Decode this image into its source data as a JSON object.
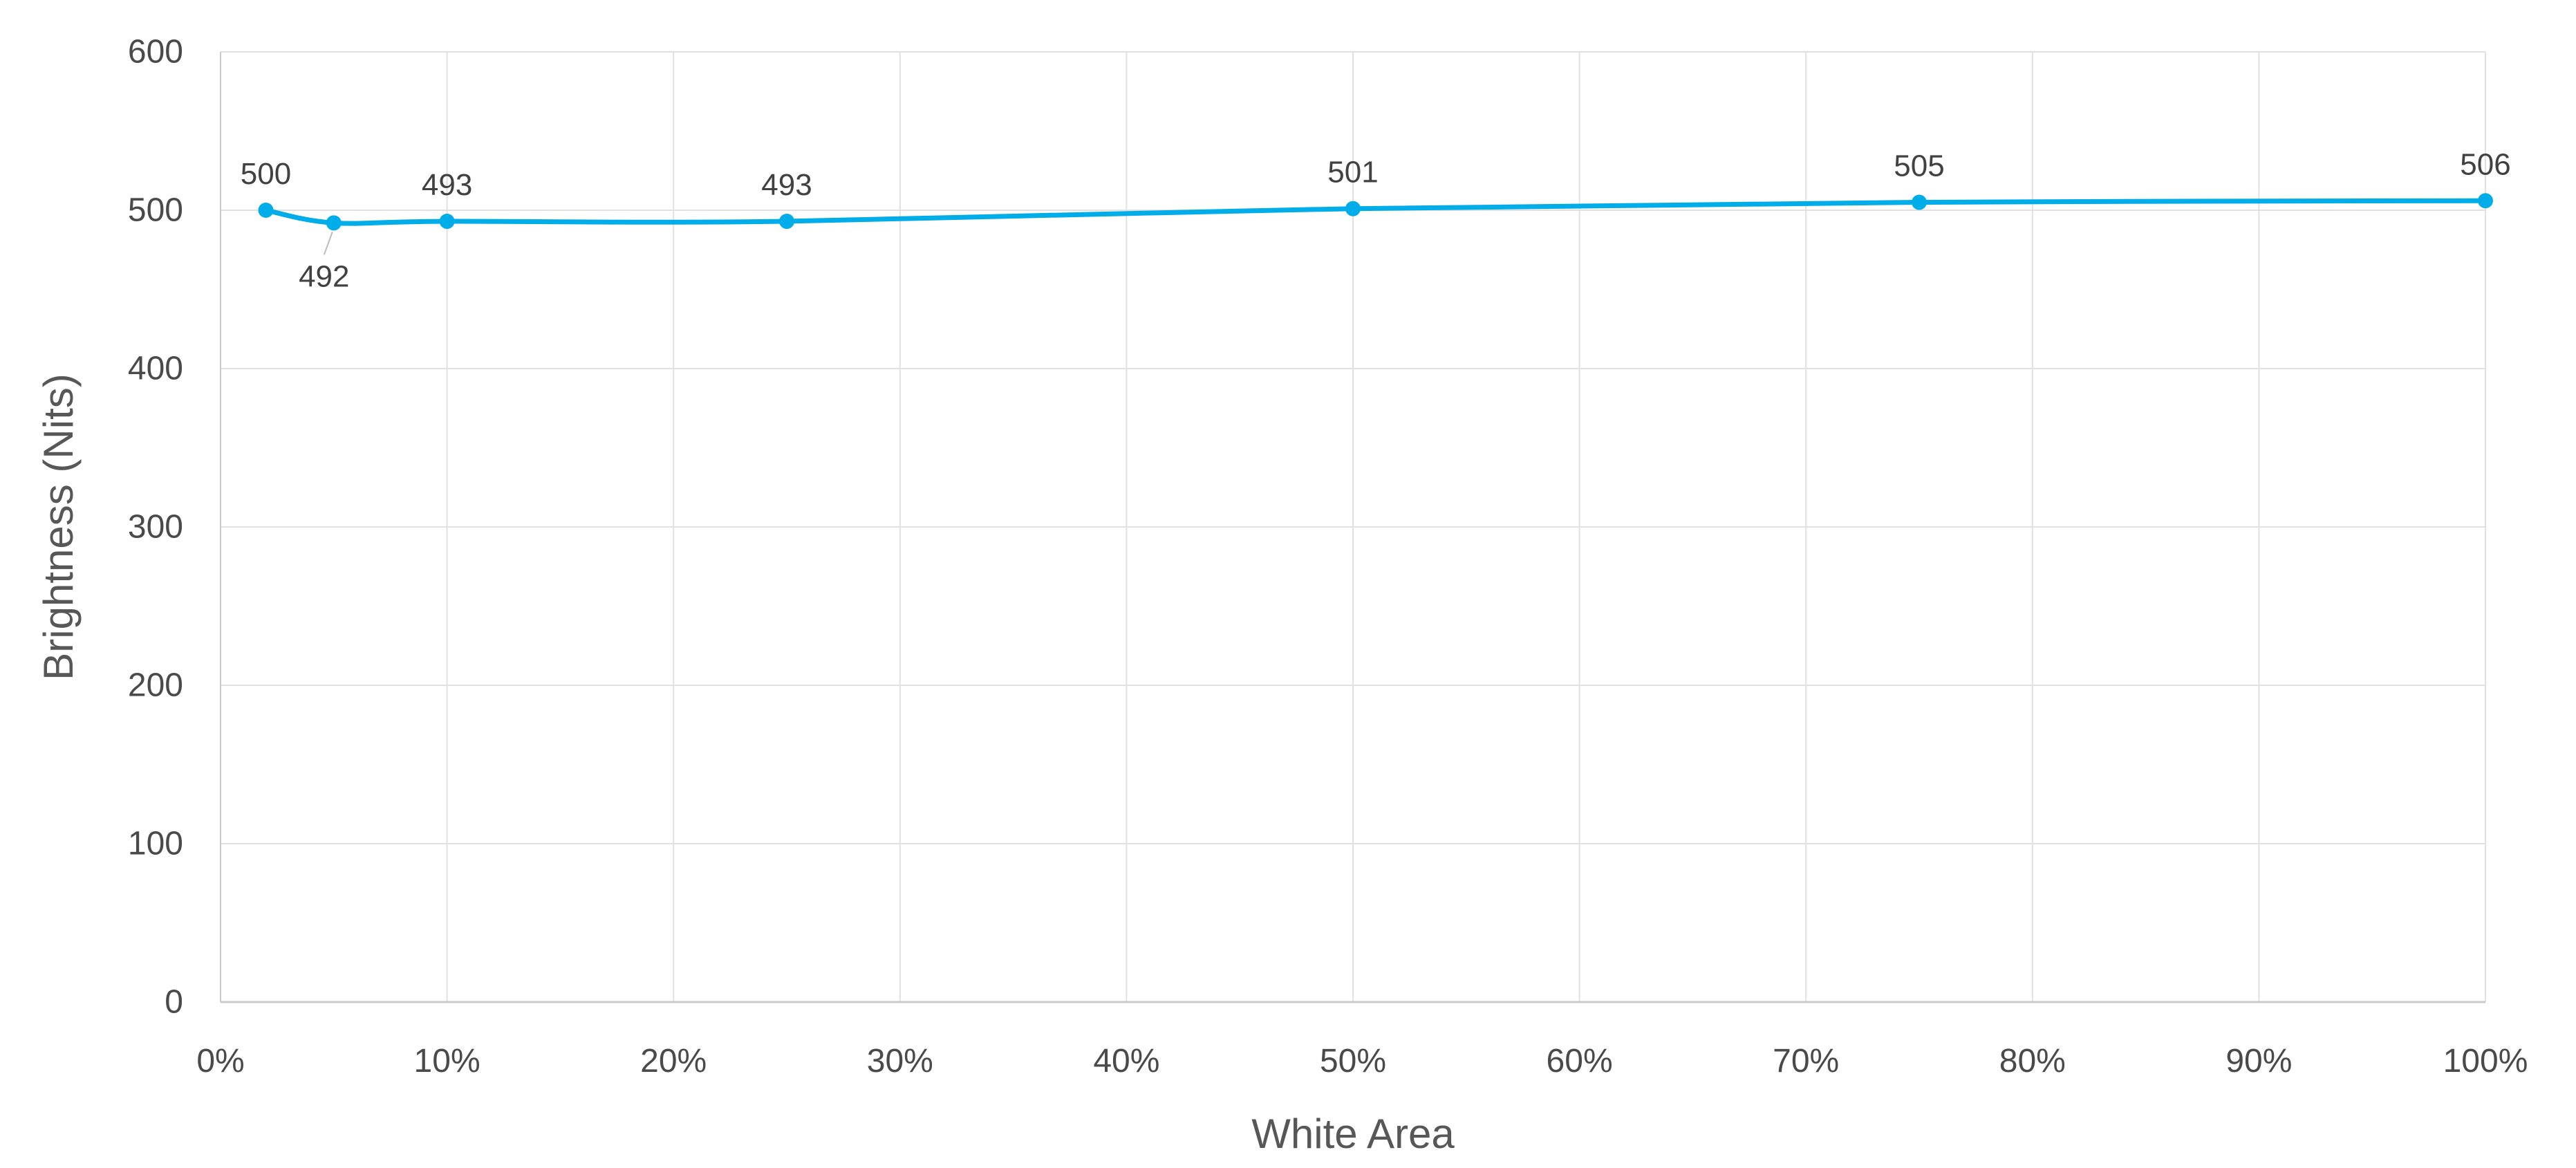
{
  "chart_data": {
    "type": "line",
    "title": "",
    "xlabel": "White Area",
    "ylabel": "Brightness (Nits)",
    "xlim": [
      0,
      100
    ],
    "ylim": [
      0,
      600
    ],
    "grid": "on",
    "legend": "none",
    "x_tick_values": [
      0,
      10,
      20,
      30,
      40,
      50,
      60,
      70,
      80,
      90,
      100
    ],
    "x_tick_labels": [
      "0%",
      "10%",
      "20%",
      "30%",
      "40%",
      "50%",
      "60%",
      "70%",
      "80%",
      "90%",
      "100%"
    ],
    "y_tick_values": [
      0,
      100,
      200,
      300,
      400,
      500,
      600
    ],
    "y_tick_labels": [
      "0",
      "100",
      "200",
      "300",
      "400",
      "500",
      "600"
    ],
    "series": [
      {
        "name": "Brightness",
        "x": [
          2,
          5,
          10,
          25,
          50,
          75,
          100
        ],
        "values": [
          500,
          492,
          493,
          493,
          501,
          505,
          506
        ],
        "data_labels": [
          "500",
          "492",
          "493",
          "493",
          "501",
          "505",
          "506"
        ],
        "label_placement": [
          "above",
          "below",
          "above",
          "above",
          "above",
          "above",
          "above"
        ]
      }
    ],
    "colors": {
      "line": "#00ADE8",
      "marker": "#00ADE8",
      "grid": "#E1E1E1",
      "axis": "#C9C9C9",
      "tick_text": "#4A4A4A",
      "data_label_text": "#414141",
      "axis_title_text": "#575757",
      "leader_line": "#BBBBBB",
      "background": "#FFFFFF"
    }
  }
}
